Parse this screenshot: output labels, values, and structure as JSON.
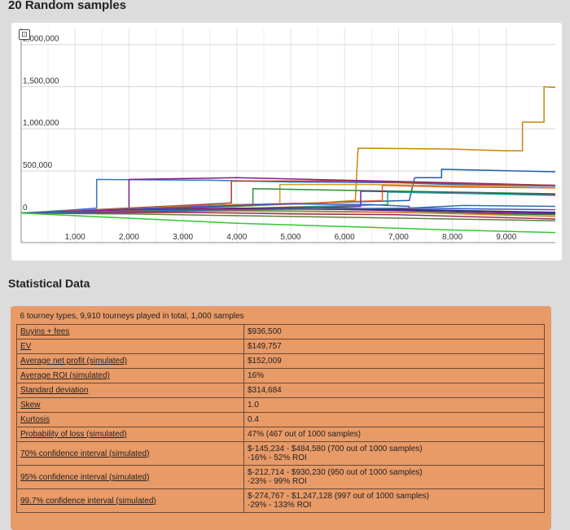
{
  "page": {
    "chart_title": "20 Random samples",
    "stats_title": "Statistical Data"
  },
  "toolbar": {
    "reset_icon": "reset-zoom-icon"
  },
  "chart_data": {
    "type": "line",
    "title": "",
    "xlabel": "",
    "ylabel": "",
    "xlim": [
      0,
      9910
    ],
    "ylim": [
      -350000,
      2200000
    ],
    "grid": true,
    "x_ticks": [
      1000,
      2000,
      3000,
      4000,
      5000,
      6000,
      7000,
      8000,
      9000
    ],
    "x_tick_labels": [
      "1,000",
      "2,000",
      "3,000",
      "4,000",
      "5,000",
      "6,000",
      "7,000",
      "8,000",
      "9,000"
    ],
    "y_ticks": [
      0,
      500000,
      1000000,
      1500000,
      2000000
    ],
    "y_tick_labels": [
      "0",
      "500,000",
      "1,000,000",
      "1,500,000",
      "2,000,000"
    ],
    "series": [
      {
        "color": "#c8860a",
        "points": [
          [
            0,
            0
          ],
          [
            2000,
            40000
          ],
          [
            4000,
            80000
          ],
          [
            5500,
            120000
          ],
          [
            6200,
            150000
          ],
          [
            6250,
            770000
          ],
          [
            8000,
            760000
          ],
          [
            9000,
            740000
          ],
          [
            9300,
            740000
          ],
          [
            9300,
            1080000
          ],
          [
            9700,
            1080000
          ],
          [
            9700,
            1500000
          ],
          [
            9910,
            1490000
          ]
        ]
      },
      {
        "color": "#1f5fa8",
        "points": [
          [
            0,
            0
          ],
          [
            1300,
            30000
          ],
          [
            2500,
            70000
          ],
          [
            4000,
            100000
          ],
          [
            5500,
            120000
          ],
          [
            7200,
            150000
          ],
          [
            7300,
            420000
          ],
          [
            7800,
            420000
          ],
          [
            7800,
            520000
          ],
          [
            9910,
            490000
          ]
        ]
      },
      {
        "color": "#3575c8",
        "points": [
          [
            0,
            0
          ],
          [
            1000,
            40000
          ],
          [
            1400,
            60000
          ],
          [
            1400,
            400000
          ],
          [
            3500,
            390000
          ],
          [
            5000,
            370000
          ],
          [
            7000,
            360000
          ],
          [
            8000,
            340000
          ],
          [
            9910,
            320000
          ]
        ]
      },
      {
        "color": "#7a1f8c",
        "points": [
          [
            0,
            0
          ],
          [
            2000,
            40000
          ],
          [
            2000,
            400000
          ],
          [
            4000,
            420000
          ],
          [
            6000,
            390000
          ],
          [
            8000,
            360000
          ],
          [
            9910,
            330000
          ]
        ]
      },
      {
        "color": "#b03a2e",
        "points": [
          [
            0,
            0
          ],
          [
            3000,
            90000
          ],
          [
            3900,
            120000
          ],
          [
            3900,
            380000
          ],
          [
            6000,
            380000
          ],
          [
            8000,
            350000
          ],
          [
            9910,
            330000
          ]
        ]
      },
      {
        "color": "#d4a017",
        "points": [
          [
            0,
            0
          ],
          [
            3000,
            80000
          ],
          [
            4800,
            110000
          ],
          [
            4800,
            340000
          ],
          [
            6500,
            340000
          ],
          [
            8200,
            320000
          ],
          [
            9910,
            300000
          ]
        ]
      },
      {
        "color": "#2b8a3e",
        "points": [
          [
            0,
            0
          ],
          [
            3000,
            60000
          ],
          [
            4300,
            90000
          ],
          [
            4300,
            290000
          ],
          [
            6000,
            270000
          ],
          [
            8000,
            250000
          ],
          [
            9910,
            230000
          ]
        ]
      },
      {
        "color": "#e0622b",
        "points": [
          [
            0,
            0
          ],
          [
            2000,
            50000
          ],
          [
            4000,
            100000
          ],
          [
            5500,
            120000
          ],
          [
            6700,
            150000
          ],
          [
            6700,
            330000
          ],
          [
            8000,
            310000
          ],
          [
            9910,
            300000
          ]
        ]
      },
      {
        "color": "#6a2c91",
        "points": [
          [
            0,
            0
          ],
          [
            3000,
            40000
          ],
          [
            5000,
            60000
          ],
          [
            6300,
            80000
          ],
          [
            6300,
            260000
          ],
          [
            8000,
            240000
          ],
          [
            9910,
            220000
          ]
        ]
      },
      {
        "color": "#1a9c8c",
        "points": [
          [
            0,
            0
          ],
          [
            3000,
            40000
          ],
          [
            5500,
            80000
          ],
          [
            6800,
            100000
          ],
          [
            6800,
            250000
          ],
          [
            8500,
            230000
          ],
          [
            9910,
            210000
          ]
        ]
      },
      {
        "color": "#cc2222",
        "points": [
          [
            0,
            0
          ],
          [
            3000,
            20000
          ],
          [
            5000,
            70000
          ],
          [
            6000,
            60000
          ],
          [
            7500,
            40000
          ],
          [
            9000,
            20000
          ],
          [
            9910,
            0
          ]
        ]
      },
      {
        "color": "#3a56c8",
        "points": [
          [
            0,
            0
          ],
          [
            2500,
            60000
          ],
          [
            5000,
            110000
          ],
          [
            6500,
            100000
          ],
          [
            7200,
            80000
          ],
          [
            7200,
            60000
          ],
          [
            8500,
            50000
          ],
          [
            9910,
            40000
          ]
        ]
      },
      {
        "color": "#8b1a8b",
        "points": [
          [
            0,
            0
          ],
          [
            2000,
            40000
          ],
          [
            4000,
            60000
          ],
          [
            5500,
            50000
          ],
          [
            7000,
            30000
          ],
          [
            8500,
            10000
          ],
          [
            9910,
            -10000
          ]
        ]
      },
      {
        "color": "#2e7d32",
        "points": [
          [
            0,
            0
          ],
          [
            2000,
            20000
          ],
          [
            4000,
            30000
          ],
          [
            6000,
            20000
          ],
          [
            8000,
            0
          ],
          [
            9910,
            -20000
          ]
        ]
      },
      {
        "color": "#5d7f3a",
        "points": [
          [
            0,
            0
          ],
          [
            2000,
            -10000
          ],
          [
            4000,
            -30000
          ],
          [
            6000,
            -50000
          ],
          [
            8000,
            -70000
          ],
          [
            9910,
            -90000
          ]
        ]
      },
      {
        "color": "#d9822b",
        "points": [
          [
            0,
            0
          ],
          [
            2500,
            30000
          ],
          [
            5000,
            20000
          ],
          [
            7000,
            10000
          ],
          [
            9910,
            -40000
          ]
        ]
      },
      {
        "color": "#1d2f8f",
        "points": [
          [
            0,
            0
          ],
          [
            2000,
            20000
          ],
          [
            4500,
            50000
          ],
          [
            7000,
            40000
          ],
          [
            9910,
            10000
          ]
        ]
      },
      {
        "color": "#9e2a54",
        "points": [
          [
            0,
            0
          ],
          [
            3000,
            10000
          ],
          [
            5000,
            -10000
          ],
          [
            7000,
            -20000
          ],
          [
            9910,
            -70000
          ]
        ]
      },
      {
        "color": "#2a6fb0",
        "points": [
          [
            0,
            0
          ],
          [
            4000,
            40000
          ],
          [
            7200,
            60000
          ],
          [
            8200,
            90000
          ],
          [
            9910,
            80000
          ]
        ]
      },
      {
        "color": "#32c832",
        "points": [
          [
            0,
            0
          ],
          [
            2000,
            -60000
          ],
          [
            4000,
            -120000
          ],
          [
            6000,
            -160000
          ],
          [
            8000,
            -200000
          ],
          [
            9910,
            -230000
          ]
        ]
      }
    ]
  },
  "stats": {
    "summary": "6 tourney types, 9,910 tourneys played in total, 1,000 samples",
    "rows": [
      {
        "label": "Buyins + fees",
        "line1": "$936,500",
        "line2": ""
      },
      {
        "label": "EV",
        "line1": "$149,757",
        "line2": ""
      },
      {
        "label": "Average net profit (simulated)",
        "line1": "$152,009",
        "line2": ""
      },
      {
        "label": "Average ROI (simulated)",
        "line1": "16%",
        "line2": ""
      },
      {
        "label": "Standard deviation",
        "line1": "$314,684",
        "line2": ""
      },
      {
        "label": "Skew",
        "line1": "1.0",
        "line2": ""
      },
      {
        "label": "Kurtosis",
        "line1": "0.4",
        "line2": ""
      },
      {
        "label": "Probability of loss (simulated)",
        "line1": "47% (467 out of 1000 samples)",
        "line2": ""
      },
      {
        "label": "70% confidence interval (simulated)",
        "line1": "$-145,234 - $484,580 (700 out of 1000 samples)",
        "line2": "-16% - 52% ROI"
      },
      {
        "label": "95% confidence interval (simulated)",
        "line1": "$-212,714 - $930,230 (950 out of 1000 samples)",
        "line2": "-23% - 99% ROI"
      },
      {
        "label": "99.7% confidence interval (simulated)",
        "line1": "$-274,767 - $1,247,128 (997 out of 1000 samples)",
        "line2": "-29% - 133% ROI"
      }
    ]
  }
}
